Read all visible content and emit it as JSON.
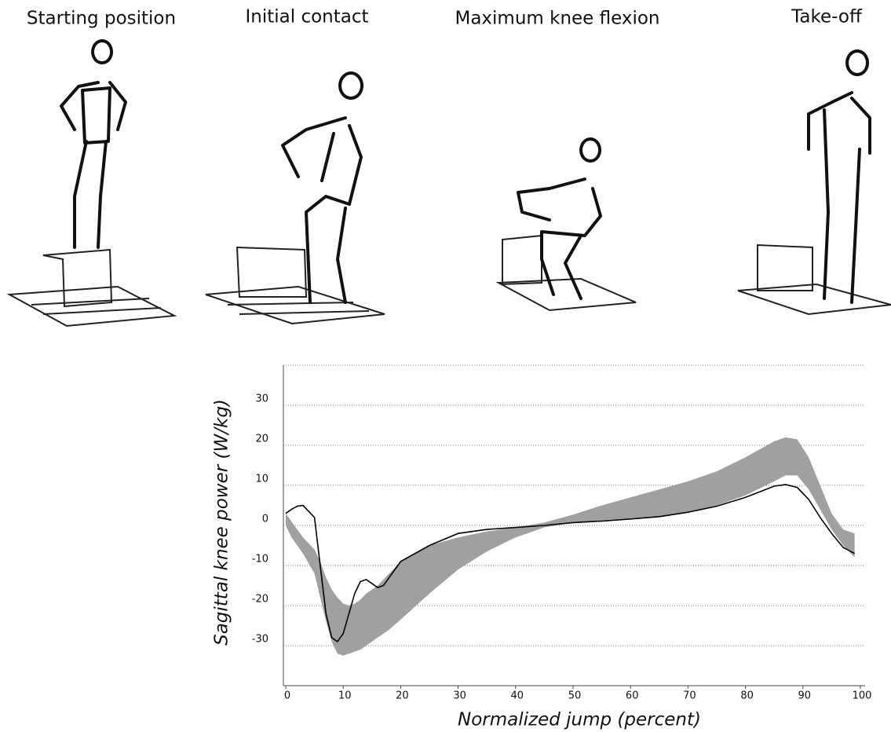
{
  "panels": [
    "Starting position",
    "Initial contact",
    "Maximum knee flexion",
    "Take-off"
  ],
  "chart_data": {
    "type": "line",
    "x_label": "Normalized jump (percent)",
    "y_label": "Sagittal knee power (W/kg)",
    "x": [
      0,
      1,
      2,
      3,
      5,
      6,
      7,
      8,
      9,
      10,
      11,
      12,
      13,
      14,
      15,
      16,
      17,
      18,
      20,
      25,
      30,
      35,
      40,
      45,
      50,
      55,
      60,
      65,
      70,
      75,
      80,
      85,
      87,
      89,
      91,
      93,
      95,
      97,
      99
    ],
    "mean": {
      "color": "#000000",
      "values": [
        3,
        4,
        4.8,
        5,
        2,
        -10,
        -22,
        -28,
        -29,
        -27,
        -22,
        -17,
        -14,
        -13.5,
        -14.5,
        -15.5,
        -15,
        -13,
        -9,
        -5,
        -2,
        -1,
        -0.5,
        0,
        0.7,
        1.1,
        1.6,
        2.2,
        3.3,
        4.8,
        7,
        9.8,
        10.2,
        9.5,
        6.5,
        2,
        -2,
        -5.5,
        -7
      ]
    },
    "band": {
      "color": "#a0a0a0",
      "upper": [
        3,
        1,
        -1,
        -3,
        -6,
        -9,
        -13,
        -16,
        -18,
        -19.5,
        -20,
        -19.5,
        -18.5,
        -17,
        -16,
        -15,
        -13.5,
        -12,
        -9,
        -5,
        -3,
        -1.5,
        -0.5,
        0.7,
        2.7,
        5,
        7,
        9,
        11,
        13.5,
        17,
        21,
        22,
        21.5,
        17,
        10,
        3,
        -1,
        -2
      ],
      "lower": [
        0,
        -3,
        -5,
        -7,
        -12,
        -18,
        -24,
        -29,
        -32,
        -32.5,
        -32,
        -31.5,
        -31,
        -30,
        -29,
        -28,
        -27,
        -26,
        -23.5,
        -17,
        -11,
        -6.5,
        -3,
        -0.5,
        0.7,
        1.3,
        1.8,
        2.3,
        3.2,
        5,
        7.5,
        11,
        12.5,
        12.5,
        9,
        4,
        -1,
        -5,
        -8
      ]
    },
    "xlim": [
      0,
      100
    ],
    "xticks": [
      0,
      10,
      20,
      30,
      40,
      50,
      60,
      70,
      80,
      90,
      100
    ],
    "ylim": [
      -40,
      40
    ],
    "yticks": [
      -30,
      -20,
      -10,
      0,
      10,
      20,
      30
    ],
    "grid": true
  }
}
